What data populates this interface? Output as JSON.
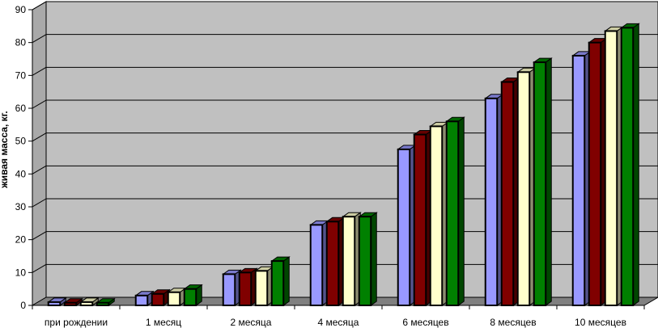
{
  "chart_data": {
    "type": "bar",
    "title": "",
    "xlabel": "",
    "ylabel": "живая масса, кг.",
    "ylim": [
      0,
      90
    ],
    "yticks": [
      0,
      10,
      20,
      30,
      40,
      50,
      60,
      70,
      80,
      90
    ],
    "grid": true,
    "legend": "none",
    "categories": [
      "при рождении",
      "1 месяц",
      "2 месяца",
      "4 месяца",
      "6 месяцев",
      "8 месяцев",
      "10 месяцев"
    ],
    "series": [
      {
        "color": "#9999ff",
        "values": [
          1,
          3,
          9.5,
          24.5,
          47.5,
          63,
          76
        ]
      },
      {
        "color": "#800000",
        "values": [
          0.8,
          3.5,
          10,
          25.5,
          52,
          68,
          80
        ]
      },
      {
        "color": "#ffffcc",
        "values": [
          1,
          4,
          10.5,
          27,
          54.5,
          71,
          83.5
        ]
      },
      {
        "color": "#008000",
        "values": [
          0.8,
          5,
          13.5,
          27,
          56,
          74,
          84.5
        ]
      }
    ],
    "colors": {
      "plot_bg": "#c0c0c0",
      "floor": "#808080",
      "grid": "#000000"
    }
  }
}
